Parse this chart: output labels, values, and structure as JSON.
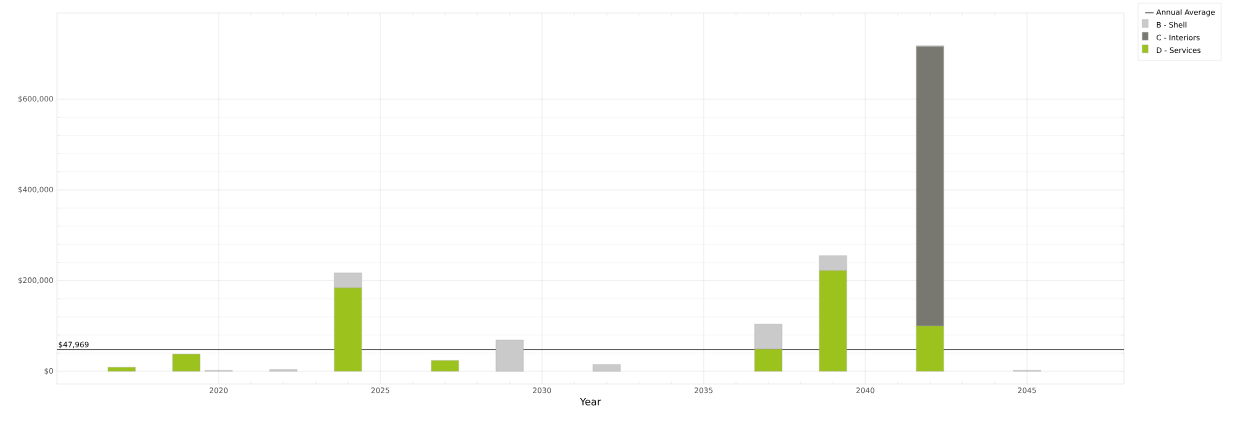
{
  "chart_data": {
    "type": "bar",
    "stacked": true,
    "xlabel": "Year",
    "x": [
      2017,
      2019,
      2020,
      2022,
      2024,
      2027,
      2029,
      2032,
      2037,
      2039,
      2042,
      2045
    ],
    "series": [
      {
        "name": "D - Services",
        "color": "#9cc21e",
        "values": [
          9000,
          38000,
          null,
          null,
          184000,
          24000,
          null,
          null,
          49000,
          222000,
          100000,
          null
        ]
      },
      {
        "name": "C - Interiors",
        "color": "#787870",
        "values": [
          null,
          null,
          null,
          null,
          null,
          null,
          null,
          null,
          null,
          null,
          616000,
          null
        ]
      },
      {
        "name": "B - Shell",
        "color": "#cacaca",
        "values": [
          null,
          null,
          2000,
          4000,
          33000,
          null,
          69000,
          15000,
          55000,
          33000,
          2000,
          2000
        ]
      },
      {
        "name": "Annual Average",
        "type": "line",
        "color": "#555555",
        "x": [
          2015,
          2048
        ],
        "values": [
          47969,
          47969
        ]
      }
    ],
    "annotations": [
      {
        "text": "$47,969",
        "x": 2015,
        "y": 47969
      }
    ],
    "xlim": [
      2015,
      2048
    ],
    "xticks": [
      2020,
      2025,
      2030,
      2035,
      2040,
      2045
    ],
    "ylim": [
      -28000,
      790000
    ],
    "yticks": [
      {
        "value": 0,
        "label": "$0"
      },
      {
        "value": 200000,
        "label": "$200,000"
      },
      {
        "value": 400000,
        "label": "$400,000"
      },
      {
        "value": 600000,
        "label": "$600,000"
      }
    ],
    "grid": true,
    "legend": "top right"
  }
}
